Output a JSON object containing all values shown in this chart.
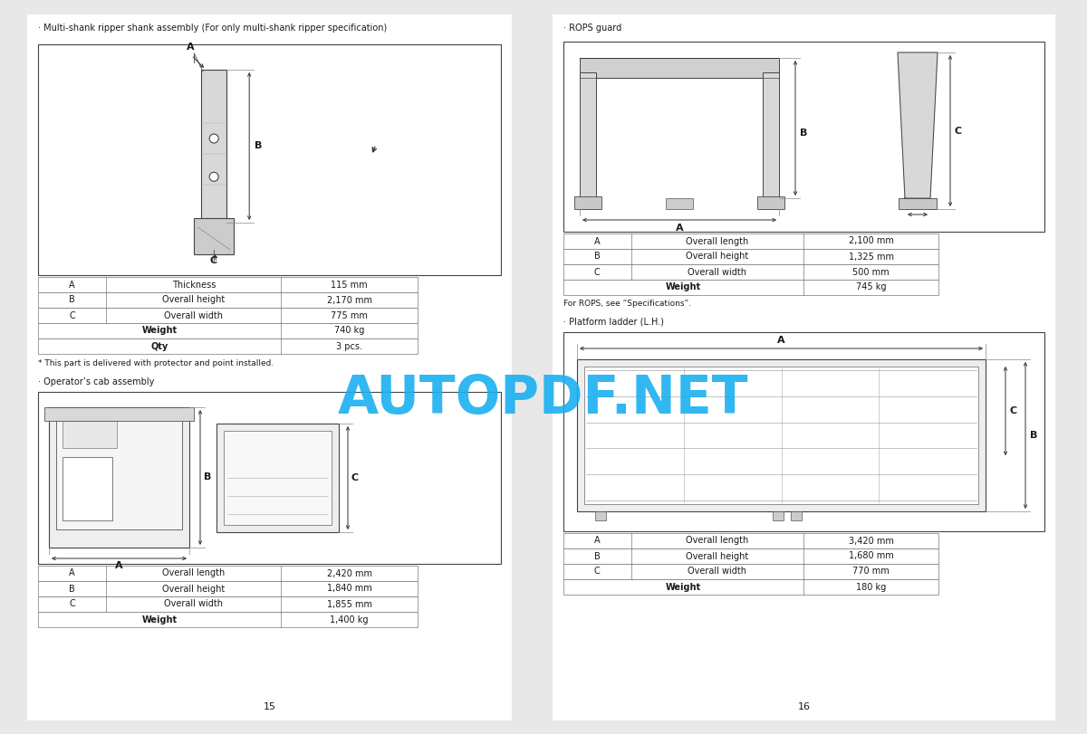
{
  "bg_color": "#e8e8e8",
  "page_bg": "#ffffff",
  "sections": {
    "left_top_title": "· Multi-shank ripper shank assembly (For only multi-shank ripper specification)",
    "left_bottom_title": "· Operator’s cab assembly",
    "right_top_title": "· ROPS guard",
    "right_bottom_title": "· Platform ladder (L.H.)"
  },
  "left_top_table": [
    [
      "A",
      "Thickness",
      "115 mm"
    ],
    [
      "B",
      "Overall height",
      "2,170 mm"
    ],
    [
      "C",
      "Overall width",
      "775 mm"
    ],
    [
      "Weight",
      "",
      "740 kg"
    ],
    [
      "Qty",
      "",
      "3 pcs."
    ]
  ],
  "left_bottom_note": "* This part is delivered with protector and point installed.",
  "left_bottom_table": [
    [
      "A",
      "Overall length",
      "2,420 mm"
    ],
    [
      "B",
      "Overall height",
      "1,840 mm"
    ],
    [
      "C",
      "Overall width",
      "1,855 mm"
    ],
    [
      "Weight",
      "",
      "1,400 kg"
    ]
  ],
  "right_top_table": [
    [
      "A",
      "Overall length",
      "2,100 mm"
    ],
    [
      "B",
      "Overall height",
      "1,325 mm"
    ],
    [
      "C",
      "Overall width",
      "500 mm"
    ],
    [
      "Weight",
      "",
      "745 kg"
    ]
  ],
  "right_top_note": "For ROPS, see “Specifications”.",
  "right_bottom_table": [
    [
      "A",
      "Overall length",
      "3,420 mm"
    ],
    [
      "B",
      "Overall height",
      "1,680 mm"
    ],
    [
      "C",
      "Overall width",
      "770 mm"
    ],
    [
      "Weight",
      "",
      "180 kg"
    ]
  ],
  "page_numbers": [
    "15",
    "16"
  ],
  "watermark_text": "AUTOPDF.NET",
  "watermark_color": "#1ab0f0",
  "text_color": "#1a1a1a",
  "dim_color": "#333333",
  "box_color": "#333333",
  "table_line_color": "#777777",
  "gray_fill": "#e0e0e0",
  "light_fill": "#f0f0f0"
}
